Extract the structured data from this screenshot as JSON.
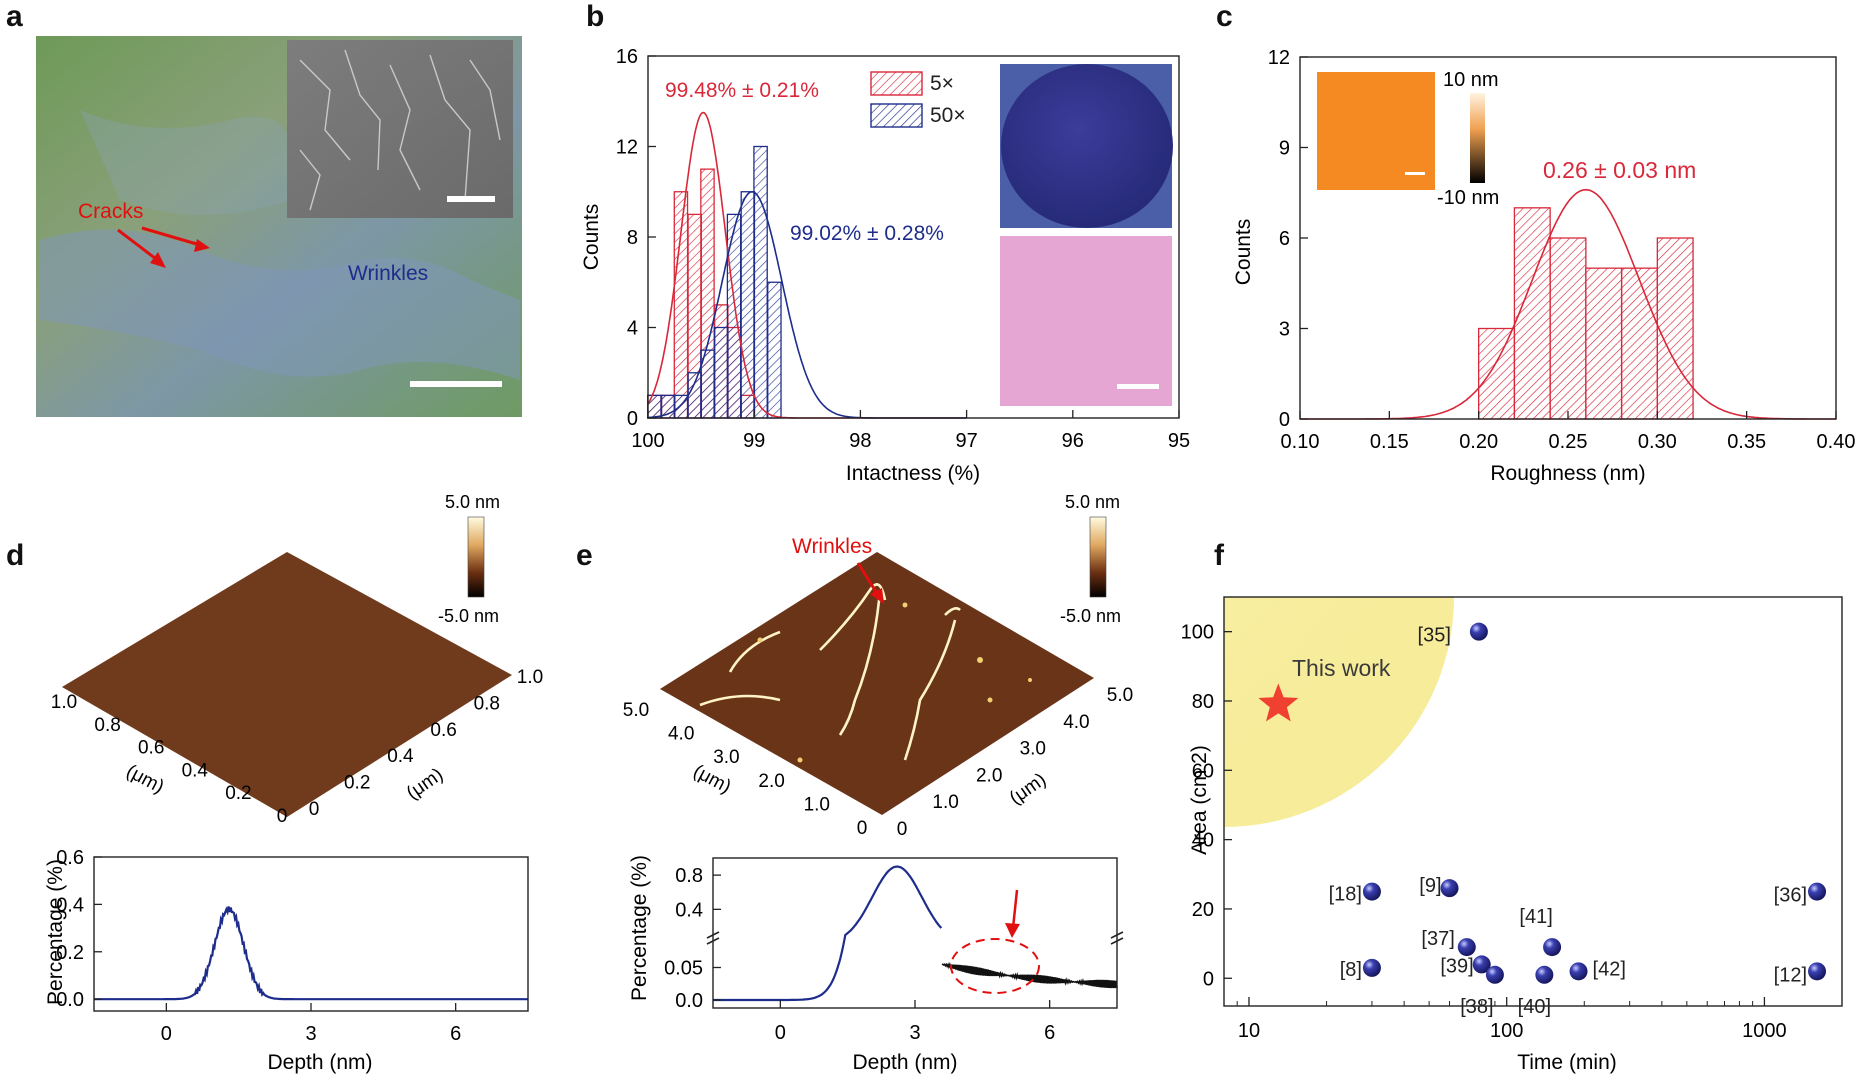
{
  "panel_labels": [
    "a",
    "b",
    "c",
    "d",
    "e",
    "f"
  ],
  "panel_a": {
    "cracks_label": "Cracks",
    "wrinkles_label": "Wrinkles"
  },
  "colors": {
    "red": "#d8283a",
    "blue": "#1e2d8c",
    "navy": "#2a2f8f",
    "afm_brown": "#7a4020",
    "pink": "#e6a6d4",
    "orange": "#f58a22",
    "yellow_glow": "#fbf3b0",
    "star": "#ef4030"
  },
  "chart_data": [
    {
      "panel": "b",
      "type": "bar",
      "xlabel": "Intactness (%)",
      "ylabel": "Counts",
      "xlim": [
        100,
        95
      ],
      "ylim": [
        0,
        16
      ],
      "xticks": [
        100,
        99,
        98,
        97,
        96,
        95
      ],
      "yticks": [
        0,
        4,
        8,
        12,
        16
      ],
      "bin_width": 0.125,
      "series": [
        {
          "name": "5×",
          "color": "#d8283a",
          "hatch": "red",
          "bin_centers": [
            99.94,
            99.81,
            99.69,
            99.56,
            99.44,
            99.31,
            99.19,
            99.06
          ],
          "counts": [
            1,
            1,
            10,
            9,
            11,
            5,
            4,
            1
          ],
          "fit": {
            "mean": 99.48,
            "sd": 0.21,
            "peak": 13.5
          }
        },
        {
          "name": "50×",
          "color": "#1e2d8c",
          "hatch": "blue",
          "bin_centers": [
            99.94,
            99.81,
            99.69,
            99.56,
            99.44,
            99.31,
            99.19,
            99.06,
            98.94,
            98.81
          ],
          "counts": [
            1,
            1,
            1,
            2,
            3,
            4,
            9,
            10,
            12,
            6
          ],
          "fit": {
            "mean": 99.02,
            "sd": 0.28,
            "peak": 10
          }
        }
      ],
      "annotations": [
        "99.48% ± 0.21%",
        "99.02% ± 0.28%"
      ]
    },
    {
      "panel": "c",
      "type": "bar",
      "xlabel": "Roughness (nm)",
      "ylabel": "Counts",
      "xlim": [
        0.1,
        0.4
      ],
      "ylim": [
        0,
        12
      ],
      "xticks": [
        "0.10",
        "0.15",
        "0.20",
        "0.25",
        "0.30",
        "0.35",
        "0.40"
      ],
      "yticks": [
        0,
        3,
        6,
        9,
        12
      ],
      "bin_width": 0.02,
      "series": [
        {
          "name": "roughness",
          "color": "#d8283a",
          "bin_centers": [
            0.21,
            0.23,
            0.25,
            0.27,
            0.29,
            0.31
          ],
          "counts": [
            3,
            7,
            6,
            5,
            5,
            6
          ],
          "fit": {
            "mean": 0.26,
            "sd": 0.03,
            "peak": 7.6
          }
        }
      ],
      "annotation": "0.26 ± 0.03 nm",
      "inset_colorbar": {
        "top": "10 nm",
        "bottom": "-10 nm"
      }
    },
    {
      "panel": "d",
      "type": "line",
      "xlabel": "Depth (nm)",
      "ylabel": "Percentage (%)",
      "xlim": [
        -1.5,
        7.5
      ],
      "ylim": [
        -0.05,
        0.6
      ],
      "xticks": [
        0,
        3,
        6
      ],
      "yticks": [
        "0.0",
        "0.2",
        "0.4",
        "0.6"
      ],
      "peak": {
        "center": 1.3,
        "height": 0.38,
        "width": 0.3
      },
      "afm_axis_ticks": [
        "1.0",
        "0.8",
        "0.6",
        "0.4",
        "0.2",
        "0",
        "0",
        "0.2",
        "0.4",
        "0.6",
        "0.8",
        "1.0"
      ],
      "afm_axis_unit": "(μm)",
      "colorbar": {
        "top": "5.0 nm",
        "bottom": "-5.0 nm"
      }
    },
    {
      "panel": "e",
      "type": "line",
      "xlabel": "Depth (nm)",
      "ylabel": "Percentage (%)",
      "xlim": [
        -1.5,
        7.5
      ],
      "xticks": [
        0,
        3,
        6
      ],
      "yticks_upper": [
        "0.4",
        "0.8"
      ],
      "yticks_lower": [
        "0.0",
        "0.05"
      ],
      "peak": {
        "center": 2.6,
        "height": 0.9,
        "width": 0.55
      },
      "tail": {
        "from": 3.6,
        "level": 0.04
      },
      "afm_axis_ticks": [
        "5.0",
        "4.0",
        "3.0",
        "2.0",
        "1.0",
        "0",
        "0",
        "1.0",
        "2.0",
        "3.0",
        "4.0",
        "5.0"
      ],
      "afm_axis_unit": "(μm)",
      "wrinkles_label": "Wrinkles",
      "colorbar": {
        "top": "5.0 nm",
        "bottom": "-5.0 nm"
      }
    },
    {
      "panel": "f",
      "type": "scatter",
      "xlabel": "Time (min)",
      "ylabel": "Area (cm 2)",
      "xscale": "log",
      "xlim": [
        8,
        2000
      ],
      "ylim": [
        -8,
        110
      ],
      "xticks": [
        "10",
        "100",
        "1000"
      ],
      "yticks": [
        0,
        20,
        40,
        60,
        80,
        100
      ],
      "this_work": {
        "label": "This work",
        "x": 13,
        "y": 79
      },
      "points": [
        {
          "label": "[35]",
          "x": 78,
          "y": 100
        },
        {
          "label": "[18]",
          "x": 30,
          "y": 25
        },
        {
          "label": "[9]",
          "x": 60,
          "y": 26
        },
        {
          "label": "[36]",
          "x": 1600,
          "y": 25
        },
        {
          "label": "[41]",
          "x": 150,
          "y": 9
        },
        {
          "label": "[37]",
          "x": 70,
          "y": 9
        },
        {
          "label": "[8]",
          "x": 30,
          "y": 3
        },
        {
          "label": "[39]",
          "x": 80,
          "y": 4
        },
        {
          "label": "[38]",
          "x": 90,
          "y": 1
        },
        {
          "label": "[40]",
          "x": 140,
          "y": 1
        },
        {
          "label": "[42]",
          "x": 190,
          "y": 2
        },
        {
          "label": "[12]",
          "x": 1600,
          "y": 2
        }
      ]
    }
  ]
}
